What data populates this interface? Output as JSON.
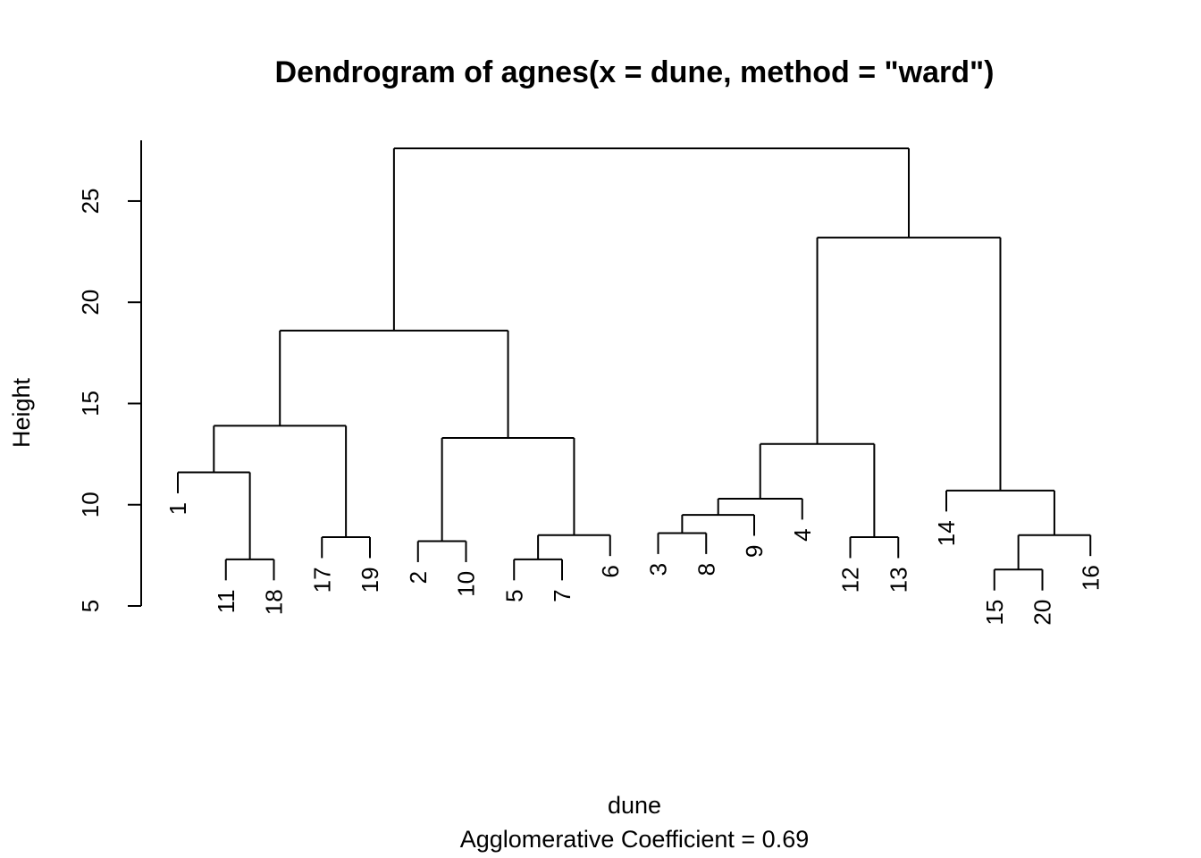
{
  "chart_data": {
    "type": "dendrogram",
    "title": "Dendrogram of  agnes(x = dune, method = \"ward\")",
    "xlabel": "dune",
    "ylabel": "Height",
    "subtitle": "Agglomerative Coefficient =  0.69",
    "ylim": [
      5,
      28
    ],
    "yticks": [
      5,
      10,
      15,
      20,
      25
    ],
    "leaf_order": [
      "1",
      "11",
      "18",
      "17",
      "19",
      "2",
      "10",
      "5",
      "7",
      "6",
      "3",
      "8",
      "9",
      "4",
      "12",
      "13",
      "14",
      "15",
      "20",
      "16"
    ],
    "hang_height": 1.0,
    "merges": [
      {
        "id": "c1",
        "left": "11",
        "right": "18",
        "height": 7.3
      },
      {
        "id": "c2",
        "left": "1",
        "right": "c1",
        "height": 11.6
      },
      {
        "id": "c3",
        "left": "17",
        "right": "19",
        "height": 8.4
      },
      {
        "id": "c4",
        "left": "c2",
        "right": "c3",
        "height": 13.9
      },
      {
        "id": "c5",
        "left": "2",
        "right": "10",
        "height": 8.2
      },
      {
        "id": "c6",
        "left": "5",
        "right": "7",
        "height": 7.3
      },
      {
        "id": "c7",
        "left": "c6",
        "right": "6",
        "height": 8.5
      },
      {
        "id": "c8",
        "left": "c5",
        "right": "c7",
        "height": 13.3
      },
      {
        "id": "c9",
        "left": "c4",
        "right": "c8",
        "height": 18.6
      },
      {
        "id": "c10",
        "left": "3",
        "right": "8",
        "height": 8.6
      },
      {
        "id": "c11",
        "left": "c10",
        "right": "9",
        "height": 9.5
      },
      {
        "id": "c12",
        "left": "c11",
        "right": "4",
        "height": 10.3
      },
      {
        "id": "c13",
        "left": "12",
        "right": "13",
        "height": 8.4
      },
      {
        "id": "c14",
        "left": "c12",
        "right": "c13",
        "height": 13.0
      },
      {
        "id": "c15",
        "left": "15",
        "right": "20",
        "height": 6.8
      },
      {
        "id": "c16",
        "left": "c15",
        "right": "16",
        "height": 8.5
      },
      {
        "id": "c17",
        "left": "14",
        "right": "c16",
        "height": 10.7
      },
      {
        "id": "c18",
        "left": "c14",
        "right": "c17",
        "height": 23.2
      },
      {
        "id": "c19",
        "left": "c9",
        "right": "c18",
        "height": 27.6
      }
    ]
  }
}
